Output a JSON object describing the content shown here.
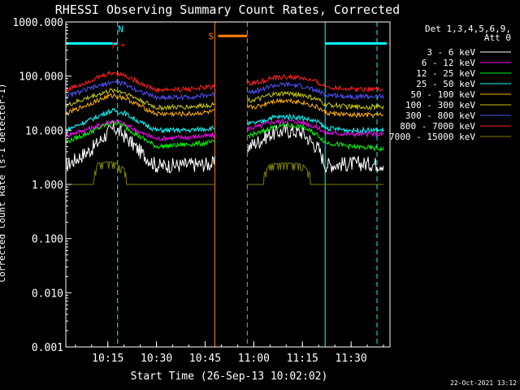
{
  "chart_data": {
    "type": "line",
    "title": "RHESSI Observing Summary Count Rates, Corrected",
    "xlabel": "Start Time (26-Sep-13 10:02:02)",
    "ylabel": "Corrected Count Rate (s-1 detector-1)",
    "yscale": "log",
    "ylim": [
      0.001,
      1000
    ],
    "ytick_labels": [
      "1000.000",
      "100.000",
      "10.000",
      "1.000",
      "0.100",
      "0.010",
      "0.001"
    ],
    "ytick_values": [
      1000,
      100,
      10,
      1,
      0.1,
      0.01,
      0.001
    ],
    "xlim": [
      "10:02:02",
      "11:42"
    ],
    "xtick_labels": [
      "10:15",
      "10:30",
      "10:45",
      "11:00",
      "11:15",
      "11:30"
    ],
    "legend_header": [
      "Det 1,3,4,5,6,9,",
      "Att 0"
    ],
    "legend_position": "top-right",
    "series": [
      {
        "name": "3 - 6 keV",
        "color": "#ffffff",
        "x": [
          "10:02",
          "10:10",
          "10:15",
          "10:17",
          "10:20",
          "10:25",
          "10:30",
          "10:40",
          "10:48",
          "11:02",
          "11:05",
          "11:10",
          "11:15",
          "11:20",
          "11:22",
          "11:30",
          "11:40"
        ],
        "values": [
          2.2,
          4.5,
          9,
          11,
          8,
          4,
          2.2,
          2.3,
          2.4,
          6.5,
          8.5,
          10,
          9,
          4.5,
          2.3,
          2.4,
          2.4
        ]
      },
      {
        "name": "6 - 12 keV",
        "color": "#ff00ff",
        "x": [
          "10:02",
          "10:10",
          "10:15",
          "10:17",
          "10:20",
          "10:25",
          "10:30",
          "10:40",
          "10:48",
          "11:02",
          "11:05",
          "11:10",
          "11:15",
          "11:20",
          "11:22",
          "11:30",
          "11:40"
        ],
        "values": [
          8,
          11,
          14,
          15,
          13,
          9,
          7,
          7.5,
          8,
          12,
          14,
          15,
          14,
          11,
          9,
          8.5,
          8.5
        ]
      },
      {
        "name": "12 - 25 keV",
        "color": "#00ff00",
        "x": [
          "10:02",
          "10:10",
          "10:15",
          "10:17",
          "10:20",
          "10:25",
          "10:30",
          "10:40",
          "10:48",
          "11:02",
          "11:05",
          "11:10",
          "11:15",
          "11:20",
          "11:22",
          "11:30",
          "11:40"
        ],
        "values": [
          6,
          9.5,
          13,
          14,
          12,
          7.5,
          5,
          5.5,
          6,
          9,
          11,
          12.5,
          11.5,
          8,
          6,
          5,
          4.5
        ]
      },
      {
        "name": "25 - 50 keV",
        "color": "#00ffff",
        "x": [
          "10:02",
          "10:10",
          "10:15",
          "10:17",
          "10:20",
          "10:25",
          "10:30",
          "10:40",
          "10:48",
          "11:02",
          "11:05",
          "11:10",
          "11:15",
          "11:20",
          "11:22",
          "11:30",
          "11:40"
        ],
        "values": [
          10,
          16,
          22,
          23,
          21,
          14,
          10,
          10,
          11,
          14,
          17,
          18,
          17,
          14,
          11,
          10,
          10
        ]
      },
      {
        "name": "50 - 100 keV",
        "color": "#ffaf00",
        "x": [
          "10:02",
          "10:10",
          "10:15",
          "10:17",
          "10:20",
          "10:25",
          "10:30",
          "10:40",
          "10:48",
          "11:02",
          "11:05",
          "11:10",
          "11:15",
          "11:20",
          "11:22",
          "11:30",
          "11:40"
        ],
        "values": [
          20,
          32,
          42,
          44,
          40,
          28,
          20,
          20,
          22,
          28,
          34,
          36,
          33,
          26,
          21,
          19,
          19
        ]
      },
      {
        "name": "100 - 300 keV",
        "color": "#c8c800",
        "x": [
          "10:02",
          "10:10",
          "10:15",
          "10:17",
          "10:20",
          "10:25",
          "10:30",
          "10:40",
          "10:48",
          "11:02",
          "11:05",
          "11:10",
          "11:15",
          "11:20",
          "11:22",
          "11:30",
          "11:40"
        ],
        "values": [
          28,
          42,
          52,
          55,
          50,
          36,
          26,
          27,
          30,
          38,
          45,
          48,
          45,
          36,
          30,
          27,
          27
        ]
      },
      {
        "name": "300 - 800 keV",
        "color": "#5050ff",
        "x": [
          "10:02",
          "10:10",
          "10:15",
          "10:17",
          "10:20",
          "10:25",
          "10:30",
          "10:40",
          "10:48",
          "11:02",
          "11:05",
          "11:10",
          "11:15",
          "11:20",
          "11:22",
          "11:30",
          "11:40"
        ],
        "values": [
          42,
          60,
          74,
          78,
          72,
          52,
          40,
          41,
          46,
          55,
          65,
          70,
          65,
          52,
          45,
          42,
          42
        ]
      },
      {
        "name": "800 - 7000 keV",
        "color": "#ff2020",
        "x": [
          "10:02",
          "10:10",
          "10:15",
          "10:17",
          "10:20",
          "10:25",
          "10:30",
          "10:40",
          "10:48",
          "11:02",
          "11:05",
          "11:10",
          "11:15",
          "11:20",
          "11:22",
          "11:30",
          "11:40"
        ],
        "values": [
          55,
          85,
          110,
          115,
          105,
          75,
          55,
          58,
          64,
          78,
          90,
          97,
          92,
          75,
          64,
          58,
          58
        ]
      },
      {
        "name": "7000 - 15000 keV",
        "color": "#808000",
        "x": [
          "10:02",
          "10:10",
          "10:12",
          "10:15",
          "10:17",
          "10:20",
          "10:22",
          "10:30",
          "10:48",
          "11:02",
          "11:05",
          "11:10",
          "11:15",
          "11:20",
          "11:22",
          "11:30",
          "11:40"
        ],
        "values": [
          1,
          1.3,
          2.5,
          2.6,
          2.6,
          2,
          1,
          1,
          1,
          1.2,
          2.4,
          2.5,
          2.4,
          1,
          1,
          1,
          1
        ]
      }
    ],
    "attenuator_bars": [
      {
        "color": "#00ffff",
        "start": "10:02",
        "end": "10:18",
        "level": 400
      },
      {
        "color": "#00ffff",
        "start": "11:22",
        "end": "11:41",
        "level": 400
      },
      {
        "label": "S",
        "color": "#ff8000",
        "start": "10:49",
        "end": "10:58",
        "level": 550
      }
    ],
    "flags": [
      {
        "label": "F",
        "color": "#ff0000",
        "x": "10:18",
        "level": 320
      },
      {
        "label": "N",
        "color": "#00ffff",
        "x": "10:18",
        "level": 650
      }
    ],
    "vertical_markers": [
      {
        "color": "#00ffff",
        "style": "dashed",
        "x": "10:18"
      },
      {
        "color": "#ff8000",
        "style": "solid",
        "x": "10:48"
      },
      {
        "color": "#ff8000",
        "style": "dashed",
        "x": "10:58"
      },
      {
        "color": "#00ffff",
        "style": "solid",
        "x": "11:22"
      },
      {
        "color": "#00ffff",
        "style": "dashed",
        "x": "11:38"
      }
    ],
    "data_gaps": [
      [
        "10:48",
        "10:58"
      ]
    ]
  },
  "footer": {
    "timestamp": "22-Oct-2021 13:12"
  }
}
